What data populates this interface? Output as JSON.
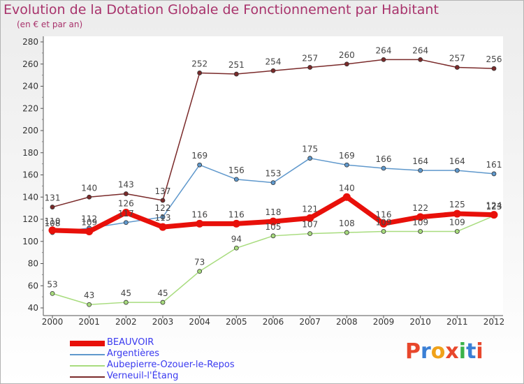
{
  "header": {
    "title": "Evolution de la Dotation Globale de Fonctionnement par Habitant",
    "subtitle": "(en € et par an)"
  },
  "logo": {
    "text": "Proxiti",
    "colors": [
      "#e8472c",
      "#3a7fd5",
      "#f0a21a",
      "#e8472c",
      "#3ab24a",
      "#3a7fd5",
      "#e8472c"
    ]
  },
  "chart_data": {
    "type": "line",
    "x": [
      2000,
      2001,
      2002,
      2003,
      2004,
      2005,
      2006,
      2007,
      2008,
      2009,
      2010,
      2011,
      2012
    ],
    "ylim": [
      40,
      280
    ],
    "yticks": [
      40,
      60,
      80,
      100,
      120,
      140,
      160,
      180,
      200,
      220,
      240,
      260,
      280
    ],
    "grid": false,
    "legend_position": "bottom-left",
    "series": [
      {
        "name": "BEAUVOIR",
        "color": "#e8100a",
        "emphasis": true,
        "values": [
          110,
          109,
          126,
          113,
          116,
          116,
          118,
          121,
          140,
          116,
          122,
          125,
          124
        ]
      },
      {
        "name": "Argentières",
        "color": "#5f98cc",
        "values": [
          108,
          112,
          117,
          122,
          169,
          156,
          153,
          175,
          169,
          166,
          164,
          164,
          161
        ]
      },
      {
        "name": "Aubepierre-Ozouer-le-Repos",
        "color": "#a8dc7e",
        "values": [
          53,
          43,
          45,
          45,
          73,
          94,
          105,
          107,
          108,
          109,
          109,
          109,
          123
        ]
      },
      {
        "name": "Verneuil-l'Étang",
        "color": "#7a2a2a",
        "values": [
          131,
          140,
          143,
          137,
          252,
          251,
          254,
          257,
          260,
          264,
          264,
          257,
          256
        ]
      }
    ]
  }
}
